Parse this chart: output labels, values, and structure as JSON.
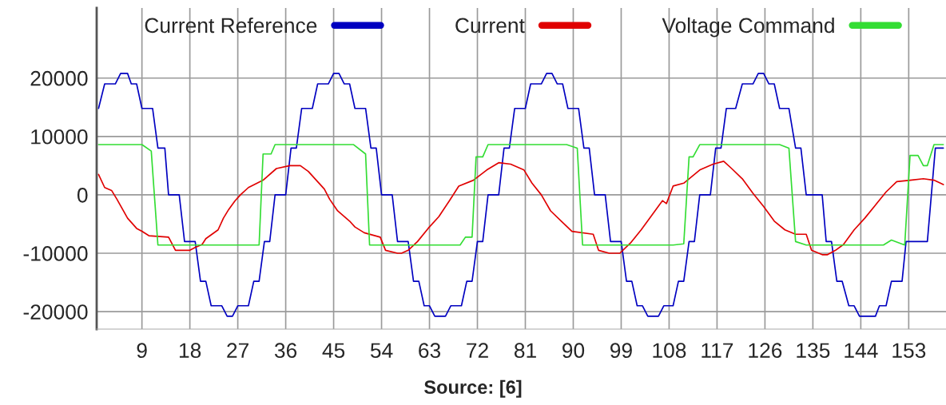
{
  "chart_data": {
    "type": "line",
    "xlim": [
      0.5,
      160
    ],
    "ylim": [
      -23000,
      32000
    ],
    "xticks": [
      9,
      18,
      27,
      36,
      45,
      54,
      63,
      72,
      81,
      90,
      99,
      108,
      117,
      126,
      135,
      144,
      153
    ],
    "yticks": [
      -20000,
      -10000,
      0,
      10000,
      20000
    ],
    "grid": true,
    "legend": "top",
    "marker": "none",
    "line_style": "solid",
    "annotations": [
      "Source: [6]"
    ],
    "series": [
      {
        "name": "Current Reference",
        "color": "#0000c0",
        "x": [
          0.85,
          2,
          4,
          5,
          6.3,
          7,
          8,
          9,
          11,
          12,
          13.3,
          14,
          16,
          17,
          19,
          20,
          21,
          22,
          24,
          25,
          26,
          27,
          29,
          30,
          31,
          32,
          33,
          34,
          36,
          37,
          38,
          39,
          41,
          42,
          44,
          45,
          46,
          47,
          48,
          49,
          51,
          52,
          53,
          54,
          56,
          57,
          59,
          60,
          61,
          62,
          63,
          64,
          66,
          67,
          69,
          70,
          71,
          72,
          73,
          74,
          76,
          77,
          78,
          79,
          81,
          82,
          84,
          85,
          86,
          87,
          88,
          89,
          91,
          92,
          93,
          94,
          96,
          97,
          99,
          100,
          101,
          102,
          103,
          104,
          106,
          107,
          108.75,
          109.75,
          110.75,
          111.75,
          112.75,
          113.75,
          115.75,
          116.75,
          117.75,
          118.75,
          120.5,
          121.75,
          123.75,
          124.75,
          125.75,
          126.75,
          127.75,
          128.75,
          130.5,
          131.75,
          132.75,
          133.75,
          136.75,
          137.5,
          138.5,
          139.5,
          140.5,
          141.75,
          142.75,
          143.75,
          146.75,
          147.5,
          148.75,
          149.75,
          151.75,
          152.5,
          156.5,
          158,
          159.5
        ],
        "values": [
          14800,
          19000,
          19000,
          20800,
          20800,
          19000,
          19000,
          14800,
          14800,
          8000,
          8000,
          0,
          0,
          -8000,
          -8000,
          -14800,
          -14800,
          -19000,
          -19000,
          -20800,
          -20800,
          -19000,
          -19000,
          -14800,
          -14800,
          -8000,
          -8000,
          0,
          0,
          8000,
          8000,
          14800,
          14800,
          19000,
          19000,
          20800,
          20800,
          19000,
          19000,
          14800,
          14800,
          8000,
          8000,
          0,
          0,
          -8000,
          -8000,
          -14800,
          -14800,
          -19000,
          -19000,
          -20800,
          -20800,
          -19000,
          -19000,
          -14800,
          -14800,
          -8000,
          -8000,
          0,
          0,
          8000,
          8000,
          14800,
          14800,
          19000,
          19000,
          20800,
          20800,
          19000,
          19000,
          14800,
          14800,
          8000,
          8000,
          0,
          0,
          -8000,
          -8000,
          -14800,
          -14800,
          -19000,
          -19000,
          -20800,
          -20800,
          -19000,
          -19000,
          -14800,
          -14800,
          -8000,
          -8000,
          0,
          0,
          8000,
          8000,
          14800,
          14800,
          19000,
          19000,
          20800,
          20800,
          19000,
          19000,
          14800,
          14800,
          8000,
          8000,
          0,
          0,
          -8000,
          -8000,
          -14800,
          -14800,
          -19000,
          -19000,
          -20800,
          -20800,
          -19000,
          -19000,
          -14800,
          -14800,
          -8000,
          -8000,
          8000,
          8000
        ]
      },
      {
        "name": "Current",
        "color": "#e00000",
        "x": [
          0.85,
          2,
          3.3,
          4.3,
          6.3,
          8,
          9,
          10.3,
          14,
          15.3,
          18,
          19,
          20.3,
          21,
          23.3,
          24.3,
          25.3,
          26.5,
          27.5,
          29,
          31.75,
          34.25,
          36.75,
          38.75,
          40.25,
          41.75,
          43.25,
          44.25,
          45.75,
          48,
          49,
          50.75,
          53.75,
          54.75,
          57,
          57.75,
          59,
          60.75,
          62.75,
          64.75,
          66.75,
          68.5,
          71.25,
          73.75,
          76,
          78.25,
          80.75,
          82.25,
          84,
          85.75,
          87.75,
          89.75,
          93.75,
          94.75,
          96.75,
          98.75,
          100.75,
          102.75,
          104.75,
          106.75,
          107.5,
          108.75,
          110.75,
          113.75,
          116.25,
          118.25,
          119.75,
          121.75,
          123.75,
          125.75,
          127.75,
          129.75,
          131.75,
          133.75,
          134.75,
          136.75,
          137.75,
          139.25,
          140.75,
          142.75,
          144.75,
          146.75,
          148.75,
          150.75,
          153.25,
          155.75,
          157.75,
          159.5
        ],
        "values": [
          3500,
          1250,
          750,
          -750,
          -4000,
          -5750,
          -6250,
          -7000,
          -7250,
          -9500,
          -9500,
          -9000,
          -8500,
          -7500,
          -6000,
          -4000,
          -2500,
          -1000,
          0,
          1250,
          2500,
          4500,
          5000,
          5000,
          4000,
          2500,
          1000,
          -750,
          -2750,
          -4500,
          -5500,
          -6500,
          -7250,
          -9500,
          -10000,
          -10000,
          -9500,
          -8000,
          -5750,
          -3750,
          -1000,
          1500,
          2500,
          4250,
          5500,
          5250,
          4250,
          2000,
          0,
          -2750,
          -4500,
          -6250,
          -6750,
          -9500,
          -10000,
          -10000,
          -8250,
          -6000,
          -3500,
          -1000,
          -1500,
          1500,
          2000,
          4250,
          5250,
          5750,
          4500,
          2750,
          250,
          -2000,
          -4500,
          -6000,
          -6750,
          -6750,
          -9500,
          -10250,
          -10250,
          -9500,
          -8500,
          -6000,
          -4000,
          -1750,
          500,
          2250,
          2500,
          2750,
          2500,
          1750
        ]
      },
      {
        "name": "Voltage Command",
        "color": "#33dd33",
        "x": [
          0.85,
          9,
          10.75,
          12,
          30.75,
          31,
          31.75,
          33.25,
          34,
          48.75,
          51,
          51.75,
          68.75,
          69.75,
          71,
          71.75,
          73,
          74,
          88.75,
          90.75,
          91.75,
          108.75,
          110.75,
          111.75,
          112.5,
          113.75,
          128.75,
          130.5,
          131.75,
          133.75,
          148.25,
          149.75,
          152.25,
          153.25,
          154.75,
          155.75,
          156.5,
          157.75,
          159.5
        ],
        "values": [
          8600,
          8600,
          7500,
          -8600,
          -8600,
          -8600,
          7000,
          7000,
          8600,
          8600,
          7000,
          -8600,
          -8600,
          -7250,
          -7250,
          6500,
          6500,
          8600,
          8600,
          8000,
          -8600,
          -8600,
          -8400,
          6500,
          6500,
          8600,
          8600,
          8000,
          -8000,
          -8600,
          -8600,
          -7750,
          -8600,
          6750,
          6750,
          5000,
          5000,
          8600,
          8600
        ]
      }
    ]
  }
}
